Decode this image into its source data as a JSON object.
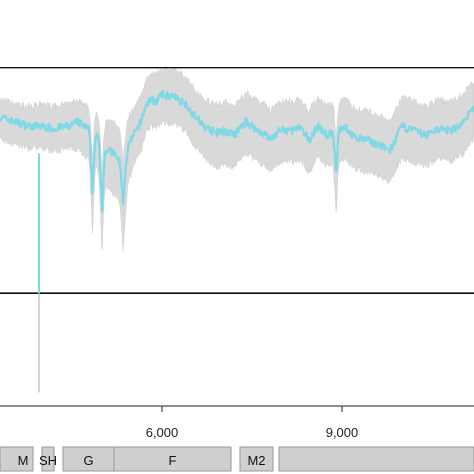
{
  "chart_data": {
    "type": "line",
    "title": "",
    "xlabel": "",
    "ylabel": "",
    "xlim": [
      3300,
      11200
    ],
    "ylim": [
      -0.5,
      1.3
    ],
    "x_ticks": [
      {
        "value": 6000,
        "label": "6,000"
      },
      {
        "value": 9000,
        "label": "9,000"
      }
    ],
    "reference_lines": [
      0,
      1
    ],
    "grid": false,
    "legend": "none",
    "series": [
      {
        "color": "#7fd8e6",
        "band_color": "#d9d9d9",
        "x": [
          3300,
          3550,
          3800,
          4000,
          4200,
          4450,
          4600,
          4900,
          5050,
          5200,
          5300,
          5380,
          5400,
          5420,
          5450,
          5550,
          5650,
          5700,
          5750,
          5800,
          5900,
          6000,
          6200,
          6400,
          6500,
          6700,
          6900,
          7050,
          7200,
          7400,
          7600,
          7700,
          7800,
          7950,
          8100,
          8300,
          8450,
          8600,
          8750,
          8900,
          9050,
          9200,
          9400,
          9600,
          9800,
          10000,
          10200,
          10400,
          10600,
          10800,
          11000,
          11200
        ],
        "y": [
          0.78,
          0.76,
          0.74,
          0.74,
          0.73,
          0.74,
          0.76,
          0.7,
          0.64,
          0.62,
          0.58,
          0.56,
          0.58,
          0.62,
          0.66,
          0.71,
          0.76,
          0.81,
          0.84,
          0.86,
          0.85,
          0.88,
          0.87,
          0.84,
          0.8,
          0.74,
          0.71,
          0.72,
          0.7,
          0.76,
          0.72,
          0.71,
          0.68,
          0.72,
          0.72,
          0.73,
          0.68,
          0.74,
          0.7,
          0.72,
          0.74,
          0.69,
          0.68,
          0.66,
          0.63,
          0.74,
          0.72,
          0.7,
          0.73,
          0.72,
          0.75,
          0.82
        ],
        "lower": [
          0.68,
          0.66,
          0.64,
          0.64,
          0.63,
          0.64,
          0.64,
          0.56,
          0.47,
          0.44,
          0.4,
          0.37,
          0.4,
          0.45,
          0.5,
          0.58,
          0.63,
          0.68,
          0.72,
          0.74,
          0.73,
          0.76,
          0.75,
          0.72,
          0.67,
          0.6,
          0.56,
          0.57,
          0.56,
          0.62,
          0.58,
          0.57,
          0.54,
          0.58,
          0.58,
          0.59,
          0.53,
          0.61,
          0.56,
          0.58,
          0.6,
          0.55,
          0.54,
          0.52,
          0.49,
          0.6,
          0.58,
          0.56,
          0.6,
          0.58,
          0.61,
          0.69
        ],
        "upper": [
          0.86,
          0.84,
          0.83,
          0.84,
          0.83,
          0.84,
          0.86,
          0.8,
          0.76,
          0.76,
          0.73,
          0.71,
          0.73,
          0.76,
          0.79,
          0.83,
          0.88,
          0.92,
          0.95,
          0.98,
          0.97,
          1.0,
          0.99,
          0.96,
          0.92,
          0.86,
          0.84,
          0.85,
          0.83,
          0.89,
          0.85,
          0.84,
          0.81,
          0.85,
          0.85,
          0.86,
          0.81,
          0.87,
          0.83,
          0.85,
          0.87,
          0.82,
          0.81,
          0.79,
          0.76,
          0.87,
          0.85,
          0.83,
          0.86,
          0.85,
          0.88,
          0.94
        ]
      }
    ],
    "spikes": [
      {
        "x": 4840,
        "y": 0.42
      },
      {
        "x": 5000,
        "y": 0.35
      },
      {
        "x": 5350,
        "y": 0.39
      },
      {
        "x": 8900,
        "y": 0.51
      }
    ],
    "deep_dip": {
      "x": 3950,
      "y": 0.0,
      "lower": -0.5
    }
  },
  "genes": [
    {
      "label": "M",
      "start": 3300,
      "end": 3850
    },
    {
      "label": "SH",
      "start": 4000,
      "end": 4200
    },
    {
      "label": "G",
      "start": 4350,
      "end": 5200
    },
    {
      "label": "F",
      "start": 5200,
      "end": 7150
    },
    {
      "label": "M2",
      "start": 7300,
      "end": 7850
    },
    {
      "label": "",
      "start": 7950,
      "end": 11200
    }
  ]
}
